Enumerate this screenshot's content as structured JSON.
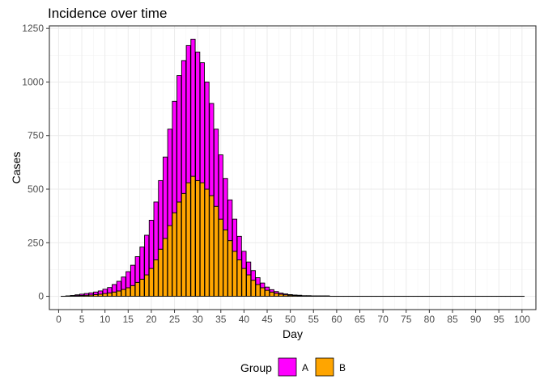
{
  "chart_data": {
    "type": "bar",
    "stacked": true,
    "title": "Incidence over time",
    "xlabel": "Day",
    "ylabel": "Cases",
    "xlim": [
      -2,
      103
    ],
    "ylim": [
      -62,
      1262
    ],
    "x_ticks": [
      0,
      5,
      10,
      15,
      20,
      25,
      30,
      35,
      40,
      45,
      50,
      55,
      60,
      65,
      70,
      75,
      80,
      85,
      90,
      95,
      100
    ],
    "y_ticks": [
      0,
      250,
      500,
      750,
      1000,
      1250
    ],
    "x_tick_labels": [
      "0",
      "5",
      "10",
      "15",
      "20",
      "25",
      "30",
      "35",
      "40",
      "45",
      "50",
      "55",
      "60",
      "65",
      "70",
      "75",
      "80",
      "85",
      "90",
      "95",
      "100"
    ],
    "y_tick_labels": [
      "0",
      "250",
      "500",
      "750",
      "1000",
      "1250"
    ],
    "grid": true,
    "legend": {
      "title": "Group",
      "position": "bottom"
    },
    "x": [
      1,
      2,
      3,
      4,
      5,
      6,
      7,
      8,
      9,
      10,
      11,
      12,
      13,
      14,
      15,
      16,
      17,
      18,
      19,
      20,
      21,
      22,
      23,
      24,
      25,
      26,
      27,
      28,
      29,
      30,
      31,
      32,
      33,
      34,
      35,
      36,
      37,
      38,
      39,
      40,
      41,
      42,
      43,
      44,
      45,
      46,
      47,
      48,
      49,
      50,
      51,
      52,
      53,
      54,
      55,
      56,
      57,
      58,
      59,
      60,
      61,
      62,
      63,
      64,
      65,
      66,
      67,
      68,
      69,
      70,
      71,
      72,
      73,
      74,
      75,
      76,
      77,
      78,
      79,
      80,
      81,
      82,
      83,
      84,
      85,
      86,
      87,
      88,
      89,
      90,
      91,
      92,
      93,
      94,
      95,
      96,
      97,
      98,
      99,
      100
    ],
    "series": [
      {
        "name": "B",
        "color": "#FFA500",
        "values": [
          0,
          1,
          2,
          3,
          4,
          5,
          6,
          8,
          10,
          13,
          16,
          20,
          25,
          32,
          40,
          50,
          65,
          80,
          100,
          130,
          170,
          220,
          270,
          330,
          390,
          440,
          480,
          530,
          560,
          540,
          530,
          500,
          470,
          420,
          360,
          310,
          260,
          210,
          170,
          130,
          100,
          75,
          55,
          40,
          28,
          20,
          14,
          10,
          7,
          5,
          4,
          3,
          2,
          2,
          1,
          1,
          1,
          1,
          0,
          0,
          0,
          0,
          0,
          0,
          0,
          0,
          0,
          0,
          0,
          0,
          0,
          0,
          0,
          0,
          0,
          0,
          0,
          0,
          0,
          0,
          0,
          0,
          0,
          0,
          0,
          0,
          0,
          0,
          0,
          0,
          0,
          0,
          0,
          0,
          0,
          0,
          0,
          0,
          0,
          0
        ]
      },
      {
        "name": "A",
        "color": "#FF00FF",
        "values": [
          0,
          1,
          2,
          4,
          6,
          8,
          10,
          12,
          15,
          20,
          25,
          35,
          45,
          58,
          75,
          95,
          120,
          150,
          185,
          225,
          270,
          320,
          380,
          450,
          520,
          590,
          620,
          640,
          640,
          600,
          560,
          500,
          430,
          360,
          300,
          240,
          190,
          150,
          110,
          80,
          60,
          45,
          32,
          22,
          15,
          11,
          8,
          5,
          4,
          3,
          2,
          2,
          1,
          1,
          1,
          1,
          1,
          1,
          0,
          0,
          0,
          0,
          0,
          0,
          0,
          0,
          0,
          0,
          0,
          0,
          0,
          0,
          0,
          0,
          0,
          0,
          0,
          0,
          0,
          0,
          0,
          0,
          0,
          0,
          0,
          0,
          0,
          0,
          0,
          0,
          0,
          0,
          0,
          0,
          0,
          0,
          0,
          0,
          0,
          0
        ]
      }
    ]
  }
}
